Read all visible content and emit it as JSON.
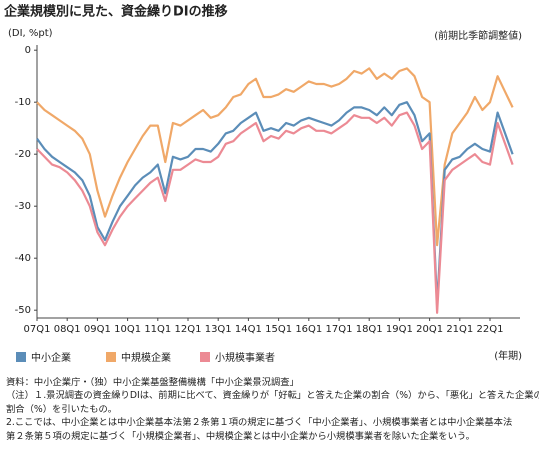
{
  "chart_data": {
    "type": "line",
    "title": "企業規模別に見た、資金繰りDIの推移",
    "y_unit": "(DI, %pt)",
    "note_right": "(前期比季節調整値)",
    "x_unit": "(年期)",
    "categories": [
      "07Q1",
      null,
      null,
      null,
      "08Q1",
      null,
      null,
      null,
      "09Q1",
      null,
      null,
      null,
      "10Q1",
      null,
      null,
      null,
      "11Q1",
      null,
      null,
      null,
      "12Q1",
      null,
      null,
      null,
      "13Q1",
      null,
      null,
      null,
      "14Q1",
      null,
      null,
      null,
      "15Q1",
      null,
      null,
      null,
      "16Q1",
      null,
      null,
      null,
      "17Q1",
      null,
      null,
      null,
      "18Q1",
      null,
      null,
      null,
      "19Q1",
      null,
      null,
      null,
      "20Q1",
      null,
      null,
      null,
      "21Q1",
      null,
      null,
      null,
      "22Q1",
      null,
      null,
      null
    ],
    "series": [
      {
        "name": "中小企業",
        "color": "#5b8db8",
        "values": [
          -17,
          -19,
          -20.5,
          -21.5,
          -22.5,
          -23.5,
          -25,
          -28,
          -34,
          -36.5,
          -33,
          -30,
          -28,
          -26,
          -24.5,
          -23.5,
          -22,
          -27.5,
          -20.5,
          -21,
          -20.5,
          -19,
          -19,
          -19.5,
          -18,
          -16,
          -15.5,
          -14,
          -13,
          -12,
          -15.5,
          -15,
          -15.5,
          -14,
          -14.5,
          -13.5,
          -13,
          -13.5,
          -14,
          -14.5,
          -13.5,
          -12,
          -11,
          -11,
          -11.5,
          -12.5,
          -11,
          -12.5,
          -10.5,
          -10,
          -12.5,
          -17.5,
          -16,
          -49,
          -23,
          -21,
          -20.5,
          -19,
          -18,
          -19,
          -19.5,
          -12,
          -16,
          -20
        ]
      },
      {
        "name": "中規模企業",
        "color": "#f0a868",
        "values": [
          -10,
          -11.5,
          -12.5,
          -13.5,
          -14.5,
          -15.5,
          -17,
          -20,
          -27,
          -32,
          -28,
          -24.5,
          -21.5,
          -19,
          -16.5,
          -14.5,
          -14.5,
          -21.5,
          -14,
          -14.5,
          -13.5,
          -12.5,
          -11.5,
          -13,
          -12.5,
          -11,
          -9,
          -8.5,
          -6.5,
          -5.5,
          -9,
          -9,
          -8.5,
          -7.5,
          -8,
          -7,
          -6,
          -6.5,
          -6.5,
          -7,
          -6.5,
          -5.5,
          -4,
          -4.5,
          -3.5,
          -5.5,
          -4.5,
          -5.5,
          -4,
          -3.5,
          -5,
          -9,
          -10,
          -37.5,
          -22,
          -16,
          -14,
          -12,
          -9,
          -11.5,
          -10,
          -5,
          -8,
          -11
        ]
      },
      {
        "name": "小規模事業者",
        "color": "#ec8a94",
        "values": [
          -19,
          -20.5,
          -22,
          -22.5,
          -23.5,
          -25,
          -27,
          -30,
          -35,
          -37.5,
          -34.5,
          -32,
          -30,
          -28.5,
          -27,
          -25.5,
          -24.5,
          -29,
          -23,
          -23,
          -22,
          -21,
          -21.5,
          -21.5,
          -20.5,
          -18,
          -17.5,
          -16,
          -15,
          -14,
          -17.5,
          -16.5,
          -17,
          -15.5,
          -16,
          -15,
          -14.5,
          -15.5,
          -15.5,
          -16,
          -15,
          -14,
          -12.5,
          -13,
          -13,
          -14,
          -13,
          -14.5,
          -12.5,
          -12,
          -14.5,
          -19,
          -17.5,
          -50.5,
          -25,
          -23,
          -22,
          -21,
          -20,
          -21.5,
          -22,
          -14,
          -18,
          -22
        ]
      }
    ],
    "ylim": [
      -51.5,
      1
    ],
    "yticks": [
      0,
      -10,
      -20,
      -30,
      -40,
      -50
    ],
    "grid": false,
    "notes": [
      "資料：中小企業庁・（独）中小企業基盤整備機構「中小企業景況調査」",
      "（注）１.景況調査の資金繰りDIは、前期に比べて、資金繰りが「好転」と答えた企業の割合（%）から、「悪化」と答えた企業の",
      "割合（%）を引いたもの。",
      "2.ここでは、中小企業とは中小企業基本法第２条第１項の規定に基づく「中小企業者」、小規模事業者とは中小企業基本法",
      "第２条第５項の規定に基づく「小規模企業者」、中規模企業とは中小企業から小規模事業者を除いた企業をいう。"
    ]
  }
}
